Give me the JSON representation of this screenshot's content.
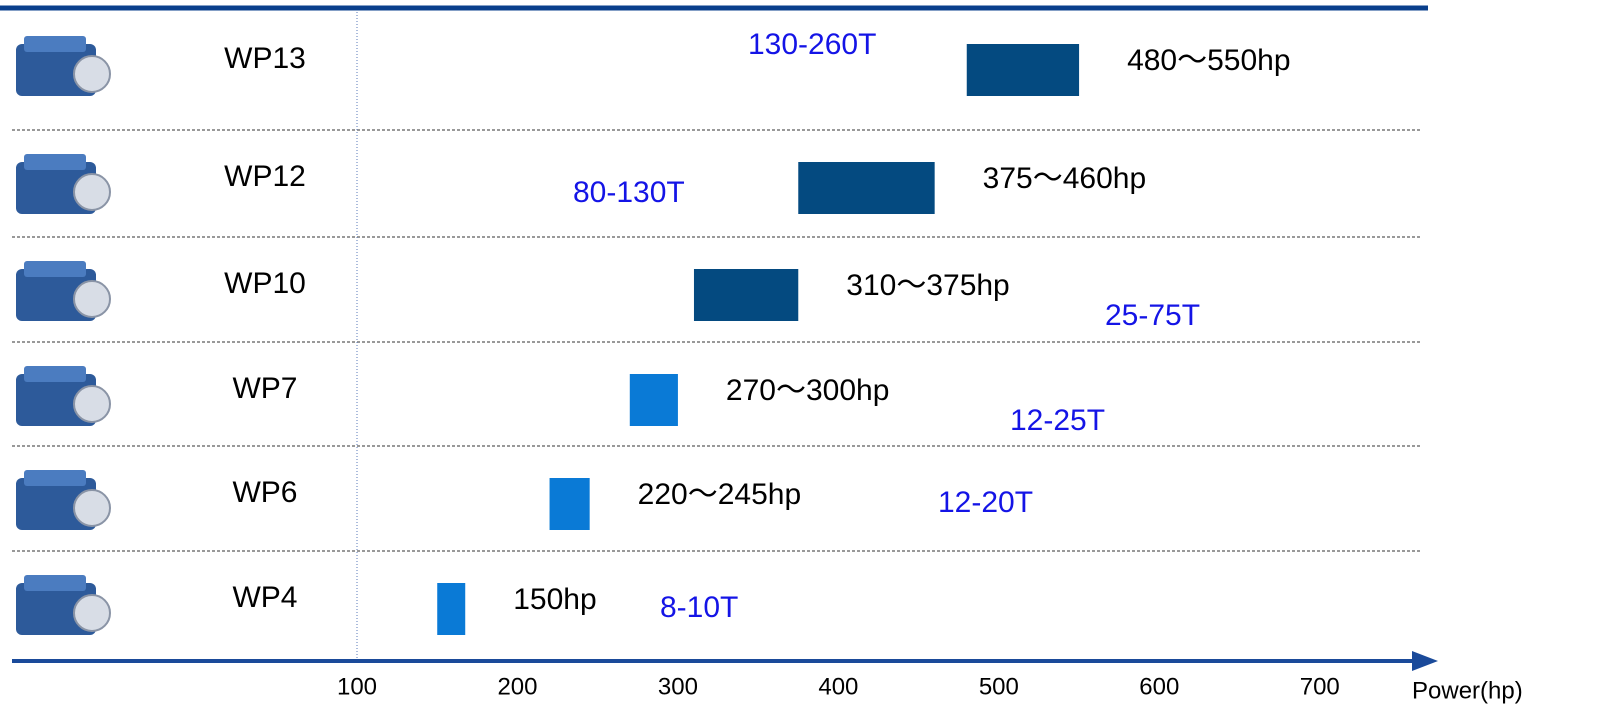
{
  "chart_data": {
    "type": "range-bar",
    "categories": [
      "WP13",
      "WP12",
      "WP10",
      "WP7",
      "WP6",
      "WP4"
    ],
    "low": [
      480,
      375,
      310,
      270,
      220,
      150
    ],
    "high": [
      550,
      460,
      375,
      300,
      245,
      150
    ],
    "value_labels": [
      "480～550hp",
      "375～460hp",
      "310～375hp",
      "270～300hp",
      "220～245hp",
      "150hp"
    ],
    "tonnage": [
      "130-260T",
      "80-130T",
      "25-75T",
      "12-25T",
      "12-20T",
      "8-10T"
    ],
    "colors": [
      "#044a80",
      "#044a80",
      "#044a80",
      "#0a7ad6",
      "#0a7ad6",
      "#0a7ad6"
    ],
    "xlim": [
      100,
      750
    ],
    "xticks": [
      100,
      200,
      300,
      400,
      500,
      600,
      700
    ],
    "x_label": "Power(hp)"
  }
}
